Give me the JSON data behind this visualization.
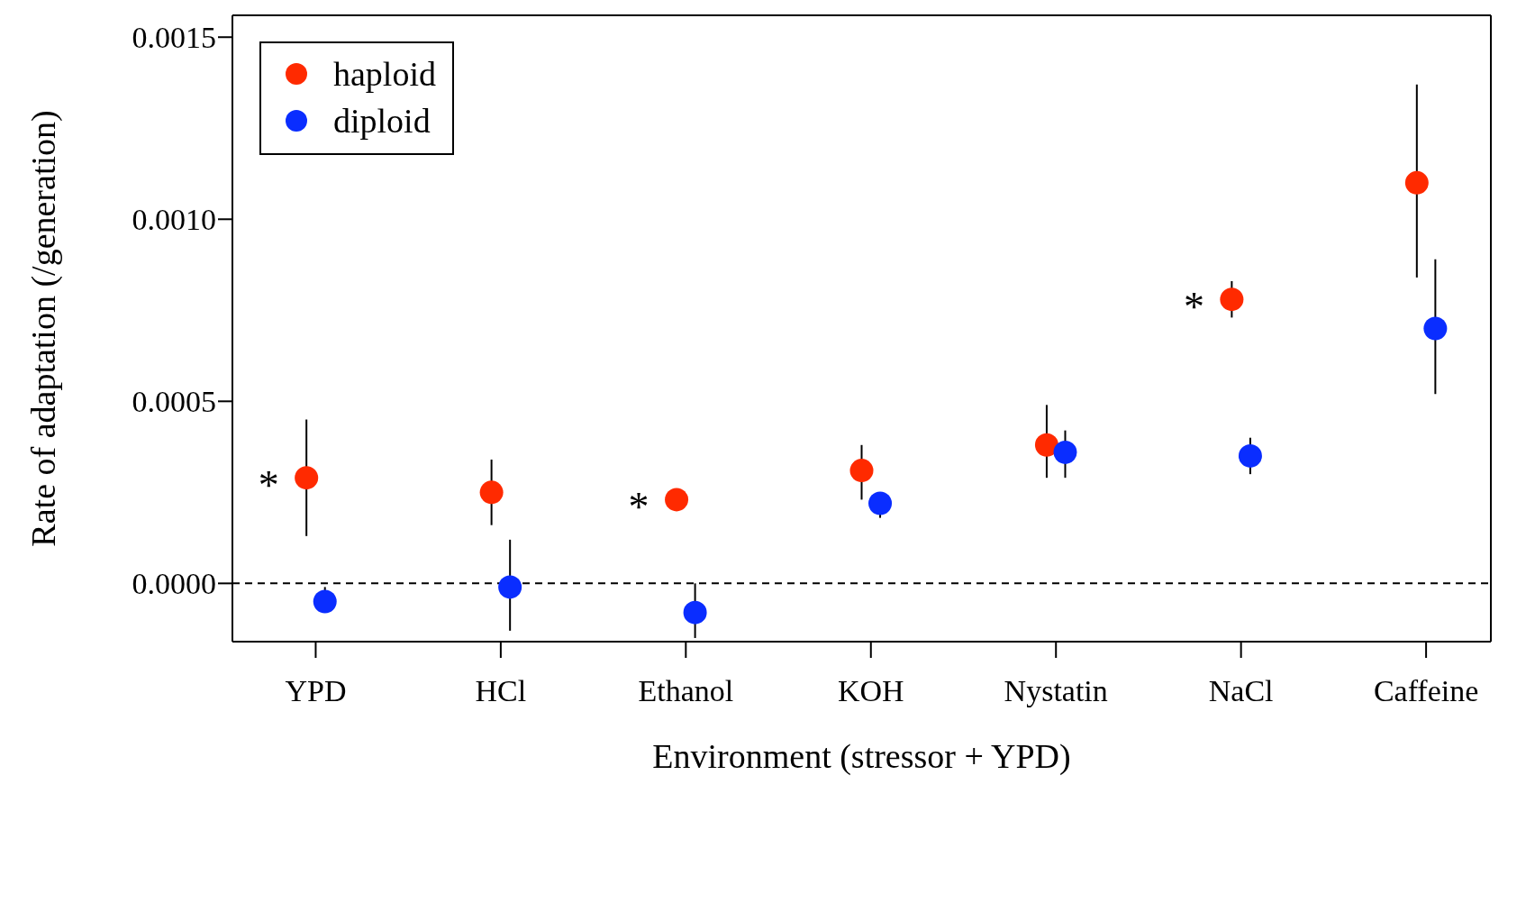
{
  "chart_data": {
    "type": "scatter",
    "xlabel": "Environment (stressor + YPD)",
    "ylabel": "Rate of adaptation (/generation)",
    "categories": [
      "YPD",
      "HCl",
      "Ethanol",
      "KOH",
      "Nystatin",
      "NaCl",
      "Caffeine"
    ],
    "series": [
      {
        "name": "haploid",
        "color": "#ff2a00",
        "values": [
          0.00029,
          0.00025,
          0.00023,
          0.00031,
          0.00038,
          0.00078,
          0.0011
        ],
        "errors": [
          [
            0.00013,
            0.00045
          ],
          [
            0.00016,
            0.00034
          ],
          null,
          [
            0.00023,
            0.00038
          ],
          [
            0.00029,
            0.00049
          ],
          [
            0.00073,
            0.00083
          ],
          [
            0.00084,
            0.00137
          ]
        ],
        "value_labels": [
          "*",
          null,
          "*",
          null,
          null,
          "*",
          null
        ]
      },
      {
        "name": "diploid",
        "color": "#0a2dff",
        "values": [
          -5e-05,
          -1e-05,
          -8e-05,
          0.00022,
          0.00036,
          0.00035,
          0.0007
        ],
        "errors": [
          [
            -8e-05,
            -1e-05
          ],
          [
            -0.00013,
            0.00012
          ],
          [
            -0.00015,
            0
          ],
          [
            0.00018,
            0.00025
          ],
          [
            0.00029,
            0.00042
          ],
          [
            0.0003,
            0.0004
          ],
          [
            0.00052,
            0.00089
          ]
        ]
      }
    ],
    "ylim": [
      -0.00016,
      0.00156
    ],
    "yticks": [
      {
        "value": 0,
        "label": "0.0000"
      },
      {
        "value": 0.0005,
        "label": "0.0005"
      },
      {
        "value": 0.001,
        "label": "0.0010"
      },
      {
        "value": 0.0015,
        "label": "0.0015"
      }
    ],
    "ref_lines": [
      {
        "axis": "y",
        "value": 0,
        "line_style": "dashed",
        "color": "#000000"
      }
    ],
    "legend": "top left",
    "grid": false,
    "marker": "circle"
  }
}
